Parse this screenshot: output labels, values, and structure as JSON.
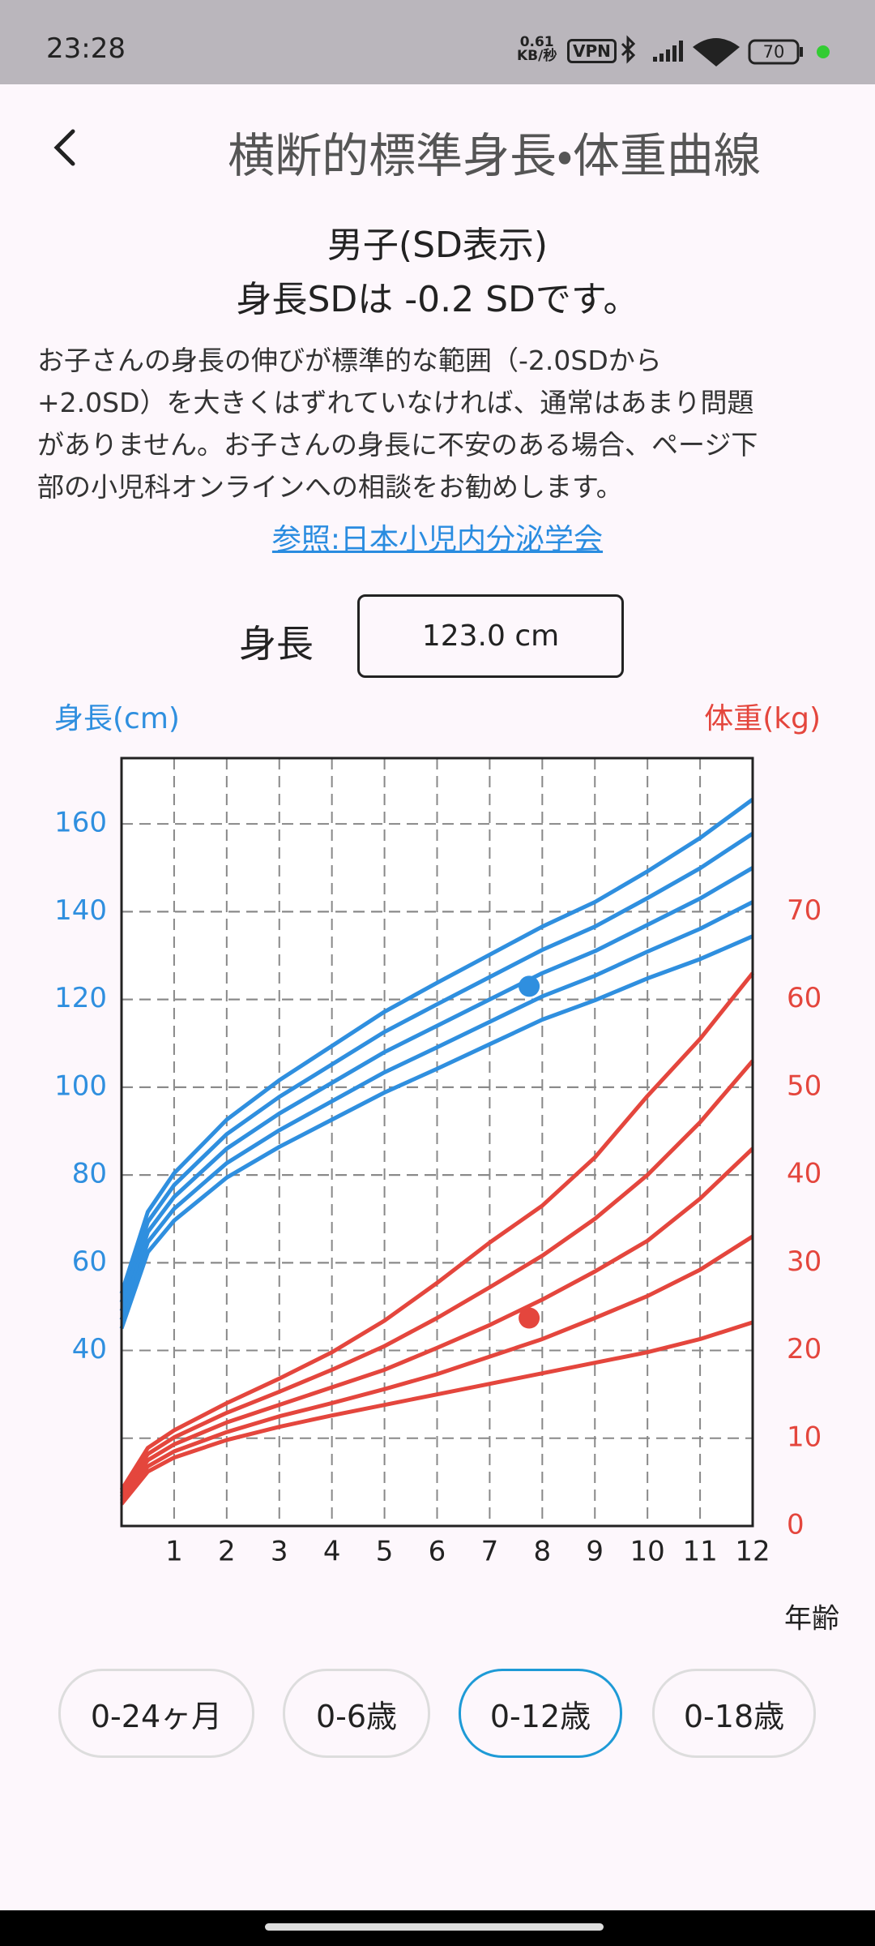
{
  "status_bar": {
    "time": "23:28",
    "speed": "0.61",
    "speed_unit": "KB/秒",
    "vpn": "VPN",
    "battery": "70"
  },
  "header": {
    "title": "横断的標準身長・体重曲線"
  },
  "summary": {
    "line1": "男子(SD表示)",
    "line2": "身長SDは -0.2 SDです。"
  },
  "description": [
    "お子さんの身長の伸びが標準的な範囲（-2.0SDから",
    "+2.0SD）を大きくはずれていなければ、通常はあまり問題",
    "がありません。お子さんの身長に不安のある場合、ページ下",
    "部の小児科オンラインへの相談をお勧めします。"
  ],
  "link": "参照:日本小児内分泌学会",
  "height_input": {
    "label": "身長",
    "value": "123.0 cm"
  },
  "chart_data": {
    "type": "line",
    "y_label": "身長(cm)",
    "y2_label": "体重(kg)",
    "x_label": "年齢",
    "x": [
      0,
      0.5,
      1,
      2,
      3,
      4,
      5,
      6,
      7,
      8,
      9,
      10,
      11,
      12
    ],
    "xlim": [
      0,
      12
    ],
    "xticks": [
      1,
      2,
      3,
      4,
      5,
      6,
      7,
      8,
      9,
      10,
      11,
      12
    ],
    "ylim": [
      0,
      175
    ],
    "yticks": [
      40,
      60,
      80,
      100,
      120,
      140,
      160
    ],
    "y2lim": [
      0,
      87.5
    ],
    "y2ticks": [
      0,
      10,
      20,
      30,
      40,
      50,
      60,
      70
    ],
    "grid": true,
    "series": [
      {
        "color": "#2f8fdf",
        "values": [
          45,
          62.4,
          69.6,
          79.4,
          86.4,
          92.6,
          98.8,
          104.2,
          109.8,
          115.4,
          119.8,
          124.8,
          129.2,
          134.4
        ]
      },
      {
        "color": "#2f8fdf",
        "values": [
          47,
          64.7,
          72.3,
          82.7,
          90.2,
          96.8,
          103.4,
          109.1,
          114.9,
          120.7,
          125.4,
          130.9,
          136.1,
          142.2
        ]
      },
      {
        "color": "#2f8fdf",
        "values": [
          49,
          67,
          75,
          86,
          94,
          101,
          108,
          114,
          120,
          126,
          131,
          137,
          143,
          150
        ]
      },
      {
        "color": "#2f8fdf",
        "values": [
          51,
          69.3,
          77.7,
          89.3,
          97.8,
          105.2,
          112.6,
          118.9,
          125.1,
          131.3,
          136.6,
          143.1,
          149.9,
          157.8
        ]
      },
      {
        "color": "#2f8fdf",
        "values": [
          53,
          71.6,
          80.4,
          92.6,
          101.6,
          109.4,
          117.2,
          123.8,
          130.2,
          136.6,
          142.2,
          149.2,
          156.8,
          165.6
        ]
      },
      {
        "color": "#e4463d",
        "axis": "y2",
        "values": [
          2.5,
          6.2,
          7.8,
          9.8,
          11.3,
          12.6,
          13.8,
          15,
          16.2,
          17.4,
          18.6,
          19.8,
          21.3,
          23.2
        ]
      },
      {
        "color": "#e4463d",
        "axis": "y2",
        "values": [
          2.9,
          6.8,
          8.5,
          10.7,
          12.5,
          14,
          15.6,
          17.3,
          19.3,
          21.3,
          23.7,
          26.2,
          29.2,
          33
        ]
      },
      {
        "color": "#e4463d",
        "axis": "y2",
        "values": [
          3.3,
          7.5,
          9.3,
          11.8,
          13.8,
          15.8,
          17.8,
          20.3,
          22.9,
          25.8,
          29,
          32.5,
          37.3,
          43
        ]
      },
      {
        "color": "#e4463d",
        "axis": "y2",
        "values": [
          3.7,
          8.2,
          10.1,
          12.9,
          15.3,
          17.8,
          20.5,
          23.7,
          27.2,
          30.8,
          35,
          40,
          46,
          53
        ]
      },
      {
        "color": "#e4463d",
        "axis": "y2",
        "values": [
          4.1,
          8.9,
          10.9,
          14,
          16.8,
          19.8,
          23.4,
          27.7,
          32.3,
          36.5,
          42,
          49,
          55.5,
          63
        ]
      }
    ],
    "points": [
      {
        "x": 7.75,
        "y": 123,
        "color": "#2f8fdf"
      },
      {
        "x": 7.75,
        "y": 23.7,
        "color": "#e4463d",
        "axis": "y2"
      }
    ]
  },
  "range_buttons": [
    "0-24ヶ月",
    "0-6歳",
    "0-12歳",
    "0-18歳"
  ]
}
